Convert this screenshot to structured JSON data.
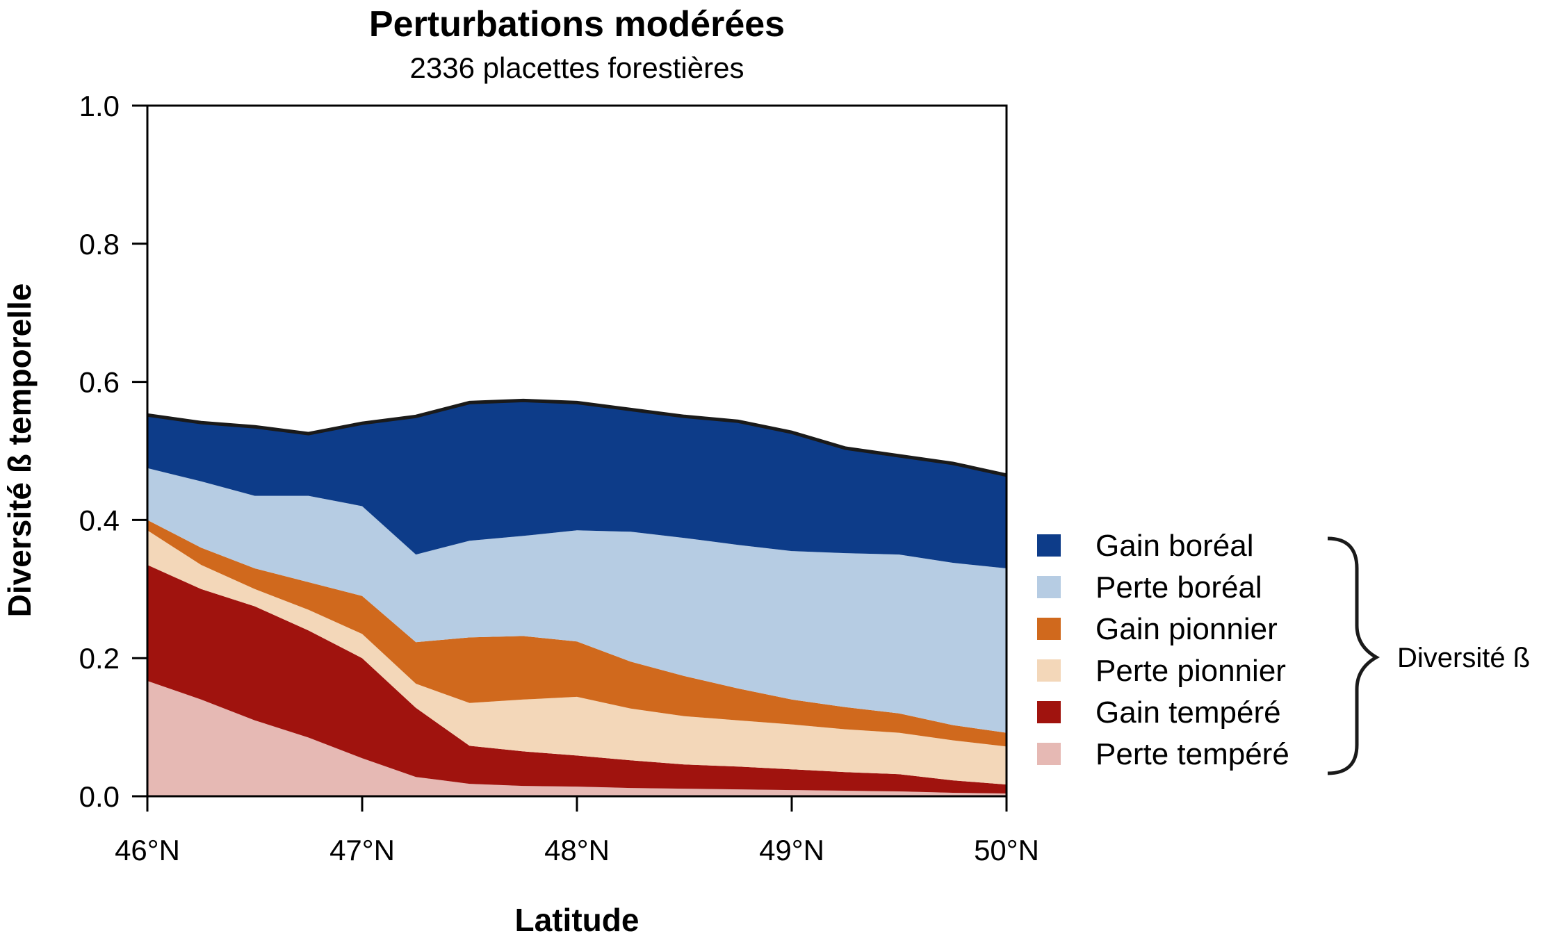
{
  "chart_data": {
    "type": "area",
    "title": "Perturbations modérées",
    "subtitle": "2336 placettes forestières",
    "xlabel": "Latitude",
    "ylabel": "Diversité ß temporelle",
    "xlim": [
      46,
      50
    ],
    "ylim": [
      0,
      1
    ],
    "x_ticks": [
      46,
      47,
      48,
      49,
      50
    ],
    "x_tick_labels": [
      "46°N",
      "47°N",
      "48°N",
      "49°N",
      "50°N"
    ],
    "y_ticks": [
      0,
      0.2,
      0.4,
      0.6,
      0.8,
      1
    ],
    "y_tick_labels": [
      "0.0",
      "0.2",
      "0.4",
      "0.6",
      "0.8",
      "1.0"
    ],
    "stacked": true,
    "grid": false,
    "legend_position": "right",
    "legend_group_label": "Diversité ß",
    "x": [
      46.0,
      46.25,
      46.5,
      46.75,
      47.0,
      47.25,
      47.5,
      47.75,
      48.0,
      48.25,
      48.5,
      48.75,
      49.0,
      49.25,
      49.5,
      49.75,
      50.0
    ],
    "series": [
      {
        "name": "Perte tempéré",
        "color": "#e6b9b4",
        "values": [
          0.167,
          0.14,
          0.11,
          0.085,
          0.055,
          0.028,
          0.018,
          0.015,
          0.014,
          0.012,
          0.011,
          0.01,
          0.009,
          0.008,
          0.007,
          0.005,
          0.004
        ]
      },
      {
        "name": "Gain tempéré",
        "color": "#a0130e",
        "values": [
          0.168,
          0.16,
          0.165,
          0.155,
          0.145,
          0.1,
          0.055,
          0.05,
          0.045,
          0.04,
          0.035,
          0.033,
          0.03,
          0.027,
          0.025,
          0.018,
          0.013
        ]
      },
      {
        "name": "Perte pionnier",
        "color": "#f3d7b9",
        "values": [
          0.05,
          0.035,
          0.025,
          0.03,
          0.035,
          0.035,
          0.062,
          0.075,
          0.085,
          0.075,
          0.07,
          0.067,
          0.065,
          0.062,
          0.06,
          0.058,
          0.055
        ]
      },
      {
        "name": "Gain pionnier",
        "color": "#d0691d",
        "values": [
          0.015,
          0.025,
          0.03,
          0.04,
          0.055,
          0.06,
          0.095,
          0.092,
          0.08,
          0.068,
          0.058,
          0.046,
          0.036,
          0.032,
          0.028,
          0.022,
          0.02
        ]
      },
      {
        "name": "Perte boréal",
        "color": "#b6cce3",
        "values": [
          0.075,
          0.096,
          0.105,
          0.125,
          0.13,
          0.127,
          0.14,
          0.145,
          0.161,
          0.188,
          0.2,
          0.208,
          0.215,
          0.223,
          0.23,
          0.235,
          0.238
        ]
      },
      {
        "name": "Gain boréal",
        "color": "#0d3c89",
        "values": [
          0.077,
          0.085,
          0.1,
          0.09,
          0.12,
          0.2,
          0.2,
          0.196,
          0.185,
          0.177,
          0.176,
          0.179,
          0.172,
          0.152,
          0.143,
          0.144,
          0.135
        ]
      }
    ],
    "legend_order": [
      "Gain boréal",
      "Perte boréal",
      "Gain pionnier",
      "Perte pionnier",
      "Gain tempéré",
      "Perte tempéré"
    ]
  }
}
